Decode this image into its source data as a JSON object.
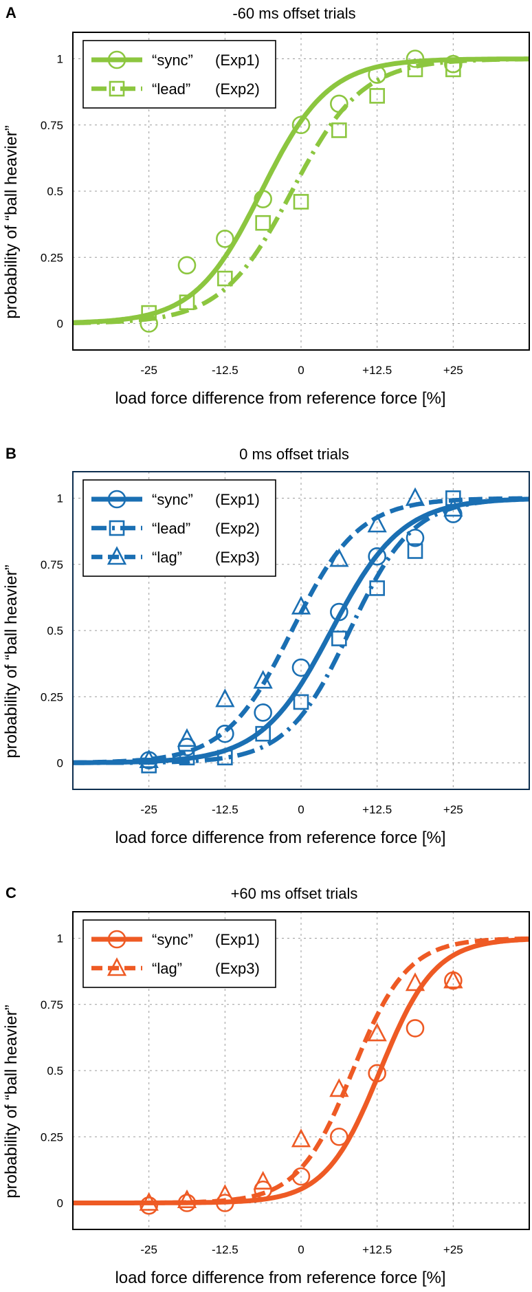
{
  "chart_data": [
    {
      "panel_label": "A",
      "type": "line",
      "title": "-60 ms offset trials",
      "xlabel": "load force difference from reference force [%]",
      "ylabel": "probability of “ball heavier”",
      "xlim": [
        -37.5,
        37.5
      ],
      "ylim": [
        -0.1,
        1.1
      ],
      "xticks": [
        -25,
        -12.5,
        0,
        12.5,
        25
      ],
      "xtick_labels": [
        "-25",
        "-12.5",
        "0",
        "+12.5",
        "+25"
      ],
      "yticks": [
        0,
        0.25,
        0.5,
        0.75,
        1
      ],
      "ytick_labels": [
        "0",
        "0.25",
        "0.5",
        "0.75",
        "1"
      ],
      "grid": true,
      "legend_position": "top-left",
      "color": "#8cc63f",
      "frame_color": "#000000",
      "series": [
        {
          "name": "“sync”",
          "experiment": "(Exp1)",
          "marker": "circle",
          "line": "solid",
          "x": [
            -25,
            -18.75,
            -12.5,
            -6.25,
            0,
            6.25,
            12.5,
            18.75,
            25
          ],
          "values": [
            0,
            0.22,
            0.32,
            0.47,
            0.75,
            0.83,
            0.94,
            1.0,
            0.98
          ],
          "fit": {
            "mu": -6.5,
            "s": 5.5
          }
        },
        {
          "name": "“lead”",
          "experiment": "(Exp2)",
          "marker": "square",
          "line": "dashdot",
          "x": [
            -25,
            -18.75,
            -12.5,
            -6.25,
            0,
            6.25,
            12.5,
            18.75,
            25
          ],
          "values": [
            0.04,
            0.08,
            0.17,
            0.38,
            0.46,
            0.73,
            0.86,
            0.96,
            0.96
          ],
          "fit": {
            "mu": -1.5,
            "s": 5.8
          }
        }
      ]
    },
    {
      "panel_label": "B",
      "type": "line",
      "title": "0 ms offset trials",
      "xlabel": "load force difference from reference force [%]",
      "ylabel": "probability of “ball heavier”",
      "xlim": [
        -37.5,
        37.5
      ],
      "ylim": [
        -0.1,
        1.1
      ],
      "xticks": [
        -25,
        -12.5,
        0,
        12.5,
        25
      ],
      "xtick_labels": [
        "-25",
        "-12.5",
        "0",
        "+12.5",
        "+25"
      ],
      "yticks": [
        0,
        0.25,
        0.5,
        0.75,
        1
      ],
      "ytick_labels": [
        "0",
        "0.25",
        "0.5",
        "0.75",
        "1"
      ],
      "grid": true,
      "legend_position": "top-left",
      "color": "#1a6fb3",
      "frame_color": "#0d2e4f",
      "series": [
        {
          "name": "“sync”",
          "experiment": "(Exp1)",
          "marker": "circle",
          "line": "solid",
          "x": [
            -25,
            -18.75,
            -12.5,
            -6.25,
            0,
            6.25,
            12.5,
            18.75,
            25
          ],
          "values": [
            0.01,
            0.06,
            0.11,
            0.19,
            0.36,
            0.57,
            0.78,
            0.85,
            0.94
          ],
          "fit": {
            "mu": 5,
            "s": 5.8
          }
        },
        {
          "name": "“lead”",
          "experiment": "(Exp2)",
          "marker": "square",
          "line": "dashdot",
          "x": [
            -25,
            -18.75,
            -12.5,
            -6.25,
            0,
            6.25,
            12.5,
            18.75,
            25
          ],
          "values": [
            -0.01,
            0.02,
            0.02,
            0.11,
            0.23,
            0.47,
            0.66,
            0.8,
            1.0
          ],
          "fit": {
            "mu": 8,
            "s": 5.2
          }
        },
        {
          "name": "“lag”",
          "experiment": "(Exp3)",
          "marker": "triangle",
          "line": "dashed",
          "x": [
            -25,
            -18.75,
            -12.5,
            -6.25,
            0,
            6.25,
            12.5,
            18.75,
            25
          ],
          "values": [
            0.01,
            0.09,
            0.24,
            0.31,
            0.59,
            0.77,
            0.9,
            1.0,
            0.96
          ],
          "fit": {
            "mu": -1.5,
            "s": 5.5
          }
        }
      ]
    },
    {
      "panel_label": "C",
      "type": "line",
      "title": "+60 ms offset trials",
      "xlabel": "load force difference from reference force [%]",
      "ylabel": "probability of “ball heavier”",
      "xlim": [
        -37.5,
        37.5
      ],
      "ylim": [
        -0.1,
        1.1
      ],
      "xticks": [
        -25,
        -12.5,
        0,
        12.5,
        25
      ],
      "xtick_labels": [
        "-25",
        "-12.5",
        "0",
        "+12.5",
        "+25"
      ],
      "yticks": [
        0,
        0.25,
        0.5,
        0.75,
        1
      ],
      "ytick_labels": [
        "0",
        "0.25",
        "0.5",
        "0.75",
        "1"
      ],
      "grid": true,
      "legend_position": "top-left",
      "color": "#ee5a24",
      "frame_color": "#000000",
      "series": [
        {
          "name": "“sync”",
          "experiment": "(Exp1)",
          "marker": "circle",
          "line": "solid",
          "x": [
            -25,
            -18.75,
            -12.5,
            -6.25,
            0,
            6.25,
            12.5,
            18.75,
            25
          ],
          "values": [
            -0.01,
            0.0,
            0.0,
            0.05,
            0.1,
            0.25,
            0.49,
            0.66,
            0.84
          ],
          "fit": {
            "mu": 13,
            "s": 4.5
          }
        },
        {
          "name": "“lag”",
          "experiment": "(Exp3)",
          "marker": "triangle",
          "line": "dashed",
          "x": [
            -25,
            -18.75,
            -12.5,
            -6.25,
            0,
            6.25,
            12.5,
            18.75,
            25
          ],
          "values": [
            0.0,
            0.01,
            0.03,
            0.08,
            0.24,
            0.43,
            0.64,
            0.83,
            0.84
          ],
          "fit": {
            "mu": 8.5,
            "s": 4.5
          }
        }
      ]
    }
  ]
}
